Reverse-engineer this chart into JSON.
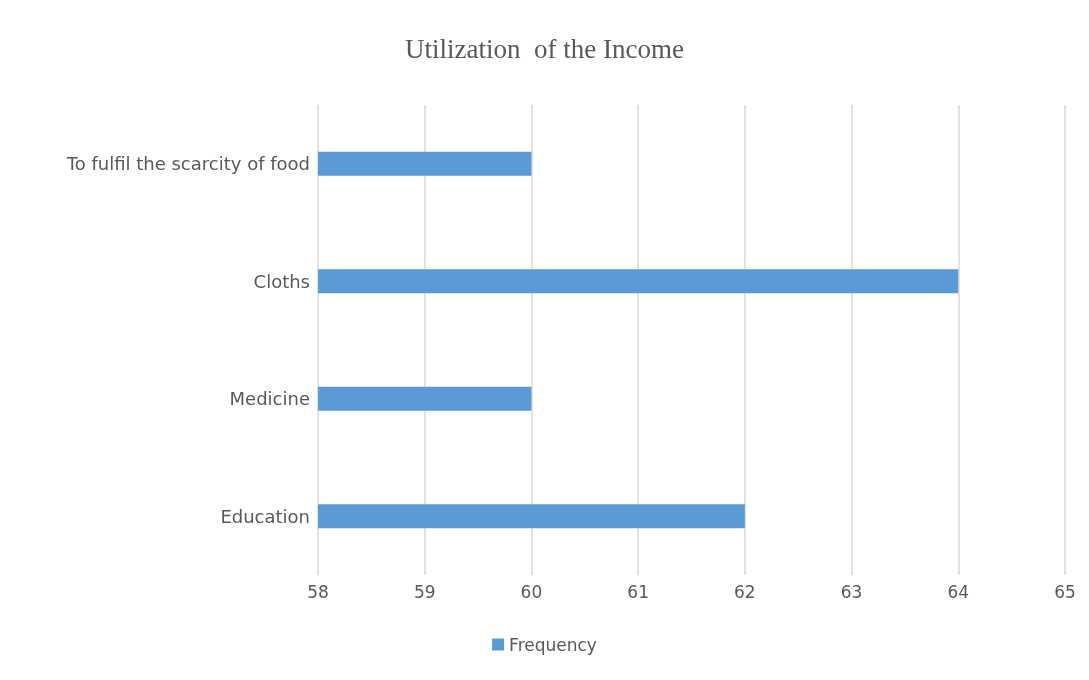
{
  "chart_data": {
    "type": "bar",
    "orientation": "horizontal",
    "title": "Utilization  of the Income",
    "categories": [
      "To fulfil the scarcity of food",
      "Cloths",
      "Medicine",
      "Education"
    ],
    "series": [
      {
        "name": "Frequency",
        "color": "#5b9bd5",
        "values": [
          60,
          64,
          60,
          62
        ]
      }
    ],
    "xlim": [
      58,
      65
    ],
    "xticks": [
      58,
      59,
      60,
      61,
      62,
      63,
      64,
      65
    ],
    "grid": "x",
    "legend": "bottom"
  }
}
